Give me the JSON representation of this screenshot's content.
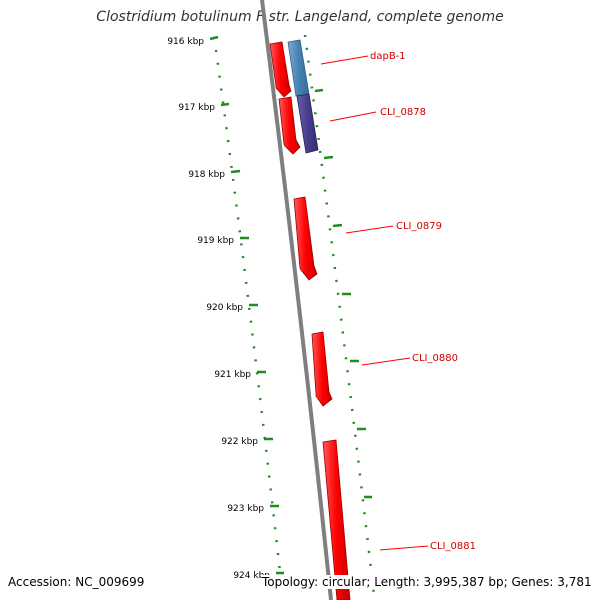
{
  "title": "Clostridium botulinum F str. Langeland, complete genome",
  "footer": {
    "accession": "Accession: NC_009699",
    "summary": "Topology: circular; Length: 3,995,387 bp; Genes: 3,781"
  },
  "colors": {
    "backbone": "#7f7f7f",
    "ticks": "#228B22",
    "gene_forward": "#ff0000",
    "gene_blue": "#4682b4",
    "gene_purple": "#483d8b",
    "label_line": "#ff0000",
    "label_text": "#cc0000"
  },
  "ticks": [
    {
      "label": "916 kbp"
    },
    {
      "label": "917 kbp"
    },
    {
      "label": "918 kbp"
    },
    {
      "label": "919 kbp"
    },
    {
      "label": "920 kbp"
    },
    {
      "label": "921 kbp"
    },
    {
      "label": "922 kbp"
    },
    {
      "label": "923 kbp"
    },
    {
      "label": "924 kbp"
    }
  ],
  "genes": [
    {
      "name": "dapB-1",
      "color": "blue"
    },
    {
      "name": "CLI_0878",
      "color": "purple"
    },
    {
      "name": "CLI_0879",
      "color": "red"
    },
    {
      "name": "CLI_0880",
      "color": "red"
    },
    {
      "name": "CLI_0881",
      "color": "red"
    }
  ]
}
